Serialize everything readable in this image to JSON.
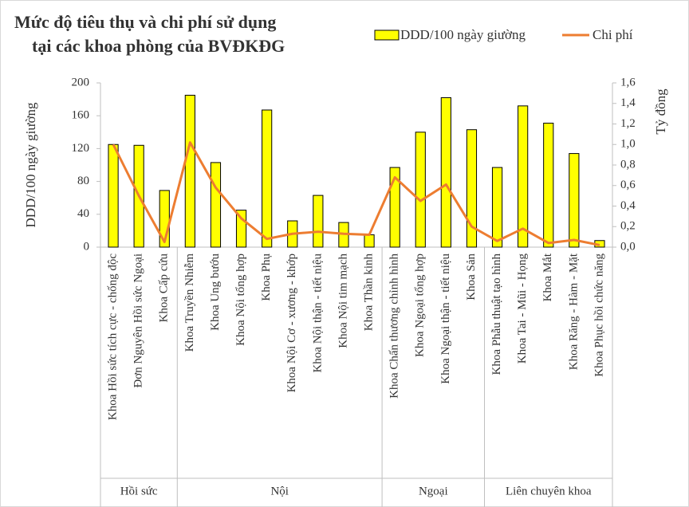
{
  "chart_data": {
    "type": "bar_line",
    "title": [
      "Mức độ tiêu thụ và chi phí sử dụng",
      "tại các khoa phòng của BVĐKĐG"
    ],
    "y_label": "DDD/100 ngày giường",
    "y2_label": "Tỷ đồng",
    "groups": [
      {
        "name": "Hồi sức",
        "categories": [
          "Khoa Hồi sức tích cực - chống độc",
          "Đơn Nguyên Hồi sức Ngoại",
          "Khoa Cấp cứu"
        ]
      },
      {
        "name": "Nội",
        "categories": [
          "Khoa Truyền Nhiễm",
          "Khoa Ung bướu",
          "Khoa Nội tổng hợp",
          "Khoa Phụ",
          "Khoa Nội Cơ - xương - khớp",
          "Khoa Nội thận - tiết niệu",
          "Khoa Nội tim mạch",
          "Khoa Thần kinh"
        ]
      },
      {
        "name": "Ngoại",
        "categories": [
          "Khoa Chấn thương chỉnh hình",
          "Khoa Ngoại tổng hợp",
          "Khoa Ngoại thận - tiết niệu",
          "Khoa Sản"
        ]
      },
      {
        "name": "Liên chuyên khoa",
        "categories": [
          "Khoa Phẫu thuật tạo hình",
          "Khoa Tai - Mũi - Họng",
          "Khoa Mắt",
          "Khoa Răng - Hàm - Mặt",
          "Khoa Phục hồi chức năng"
        ]
      }
    ],
    "series": [
      {
        "name": "DDD/100 ngày giường",
        "type": "bar",
        "color": "#ffff00",
        "values": [
          125,
          124,
          69,
          185,
          103,
          45,
          167,
          32,
          63,
          30,
          15,
          97,
          140,
          182,
          143,
          97,
          172,
          151,
          114,
          8
        ]
      },
      {
        "name": "Chi phí",
        "type": "line",
        "axis": "y2",
        "color": "#ed7d31",
        "values": [
          1.0,
          0.5,
          0.05,
          1.02,
          0.58,
          0.28,
          0.08,
          0.13,
          0.15,
          0.13,
          0.12,
          0.68,
          0.45,
          0.61,
          0.2,
          0.06,
          0.18,
          0.04,
          0.07,
          0.02
        ]
      }
    ],
    "ylim": [
      0,
      200
    ],
    "yticks": [
      0,
      40,
      80,
      120,
      160,
      200
    ],
    "y2lim": [
      0,
      1.6
    ],
    "y2ticks": [
      {
        "value": 0,
        "label": "0,0"
      },
      {
        "value": 0.2,
        "label": "0,2"
      },
      {
        "value": 0.4,
        "label": "0,4"
      },
      {
        "value": 0.6,
        "label": "0,6"
      },
      {
        "value": 0.8,
        "label": "0,8"
      },
      {
        "value": 1.0,
        "label": "1,0"
      },
      {
        "value": 1.2,
        "label": "1,2"
      },
      {
        "value": 1.4,
        "label": "1,4"
      },
      {
        "value": 1.6,
        "label": "1,6"
      }
    ]
  }
}
